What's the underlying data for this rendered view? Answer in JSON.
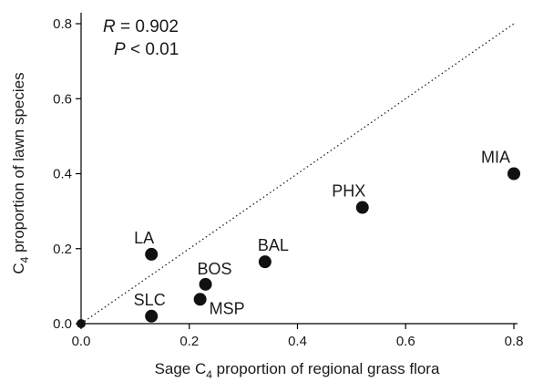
{
  "chart_data": {
    "type": "scatter",
    "xlabel": {
      "pre": "Sage C",
      "sub": "4",
      "post": " proportion of regional grass flora"
    },
    "ylabel": {
      "pre": "C",
      "sub": "4",
      "post": " proportion of lawn species"
    },
    "xlim": [
      0,
      0.8
    ],
    "ylim": [
      0,
      0.8
    ],
    "x_ticks": [
      "0.0",
      "0.2",
      "0.4",
      "0.6",
      "0.8"
    ],
    "y_ticks": [
      "0.0",
      "0.2",
      "0.4",
      "0.6",
      "0.8"
    ],
    "grid": false,
    "reference_line": {
      "style": "dotted",
      "from": [
        0,
        0
      ],
      "to": [
        0.8,
        0.8
      ]
    },
    "stats": {
      "r_symbol": "R",
      "r_value": " = 0.902",
      "p_symbol": "P",
      "p_value": " < 0.01"
    },
    "points": [
      {
        "label": "",
        "x": 0.0,
        "y": 0.0
      },
      {
        "label": "SLC",
        "x": 0.13,
        "y": 0.02
      },
      {
        "label": "LA",
        "x": 0.13,
        "y": 0.185
      },
      {
        "label": "MSP",
        "x": 0.22,
        "y": 0.065
      },
      {
        "label": "BOS",
        "x": 0.23,
        "y": 0.105
      },
      {
        "label": "BAL",
        "x": 0.34,
        "y": 0.165
      },
      {
        "label": "PHX",
        "x": 0.52,
        "y": 0.31
      },
      {
        "label": "MIA",
        "x": 0.8,
        "y": 0.4
      }
    ]
  }
}
